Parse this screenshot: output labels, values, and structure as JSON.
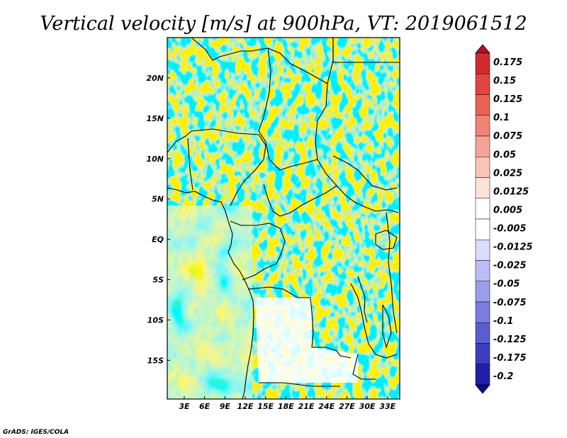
{
  "chart_data": {
    "type": "heatmap",
    "title": "Vertical velocity [m/s] at 900hPa, VT: 2019061512",
    "variable": "Vertical velocity",
    "units": "m/s",
    "level": "900hPa",
    "valid_time": "2019061512",
    "x_ticks": [
      {
        "value": 3,
        "label": "3E"
      },
      {
        "value": 6,
        "label": "6E"
      },
      {
        "value": 9,
        "label": "9E"
      },
      {
        "value": 12,
        "label": "12E"
      },
      {
        "value": 15,
        "label": "15E"
      },
      {
        "value": 18,
        "label": "18E"
      },
      {
        "value": 21,
        "label": "21E"
      },
      {
        "value": 24,
        "label": "24E"
      },
      {
        "value": 27,
        "label": "27E"
      },
      {
        "value": 30,
        "label": "30E"
      },
      {
        "value": 33,
        "label": "33E"
      }
    ],
    "y_ticks": [
      {
        "value": 20,
        "label": "20N"
      },
      {
        "value": 15,
        "label": "15N"
      },
      {
        "value": 10,
        "label": "10N"
      },
      {
        "value": 5,
        "label": "5N"
      },
      {
        "value": 0,
        "label": "EQ"
      },
      {
        "value": -5,
        "label": "5S"
      },
      {
        "value": -10,
        "label": "10S"
      },
      {
        "value": -15,
        "label": "15S"
      }
    ],
    "xlim": [
      0.5,
      34.8
    ],
    "ylim": [
      -19.8,
      25
    ],
    "colorbar": {
      "labels": [
        "0.175",
        "0.15",
        "0.125",
        "0.1",
        "0.075",
        "0.05",
        "0.025",
        "0.0125",
        "0.005",
        "-0.005",
        "-0.0125",
        "-0.025",
        "-0.05",
        "-0.075",
        "-0.1",
        "-0.125",
        "-0.175",
        "-0.2"
      ],
      "colors": [
        "#b40f20",
        "#d02a2f",
        "#e14541",
        "#e96455",
        "#f08474",
        "#f6a396",
        "#fac3b8",
        "#fde2da",
        "#ffffff",
        "#ffffff",
        "#dcdcfc",
        "#bcbcf6",
        "#9c9cec",
        "#7c7ce0",
        "#5c5cd2",
        "#3c3cc0",
        "#2020a8",
        "#0c0c8a"
      ],
      "extend": "both"
    }
  },
  "credit": "GrADS: IGES/COLA"
}
